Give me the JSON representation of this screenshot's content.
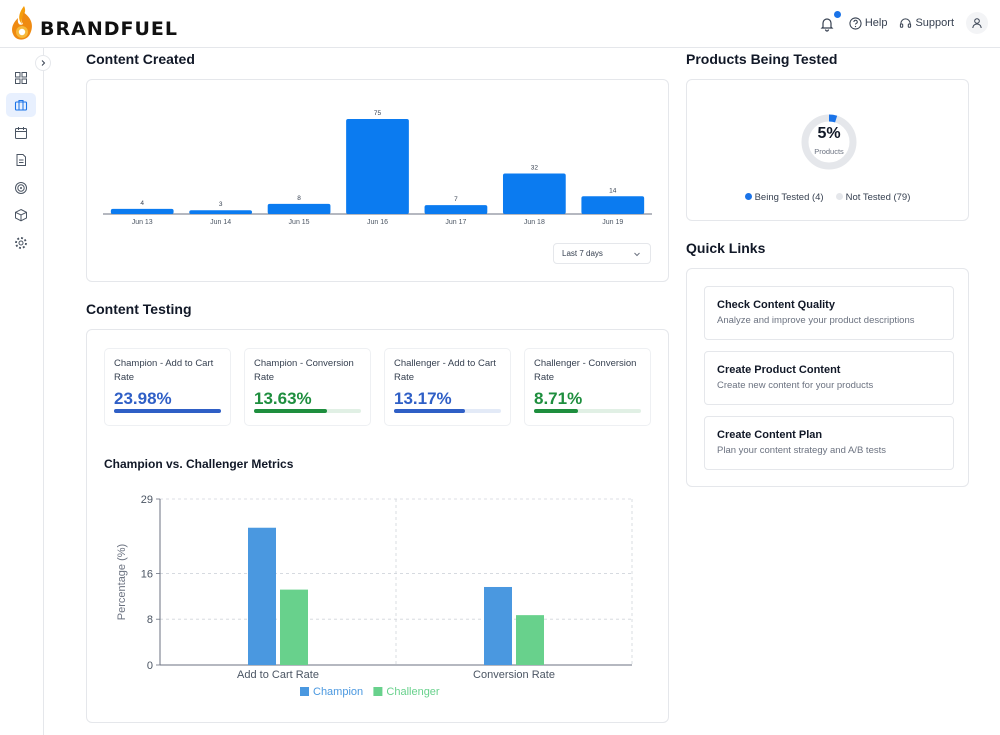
{
  "brand": {
    "name": "BRANDFUEL"
  },
  "header": {
    "help_label": "Help",
    "support_label": "Support",
    "notification_color": "#1a73e8"
  },
  "sidebar": {
    "items": [
      {
        "icon": "dashboard-icon",
        "active": false
      },
      {
        "icon": "briefcase-icon",
        "active": true
      },
      {
        "icon": "calendar-icon",
        "active": false
      },
      {
        "icon": "document-icon",
        "active": false
      },
      {
        "icon": "target-icon",
        "active": false
      },
      {
        "icon": "box-icon",
        "active": false
      },
      {
        "icon": "settings-icon",
        "active": false
      }
    ]
  },
  "content_created": {
    "title": "Content Created",
    "range_select": "Last 7 days"
  },
  "content_testing": {
    "title": "Content Testing",
    "metrics": [
      {
        "label": "Champion - Add to Cart Rate",
        "value": "23.98%",
        "color": "#2f5fc6",
        "progress": 1.0
      },
      {
        "label": "Champion - Conversion Rate",
        "value": "13.63%",
        "color": "#1e8e3e",
        "progress": 0.68
      },
      {
        "label": "Challenger - Add to Cart Rate",
        "value": "13.17%",
        "color": "#2f5fc6",
        "progress": 0.66
      },
      {
        "label": "Challenger - Conversion Rate",
        "value": "8.71%",
        "color": "#1e8e3e",
        "progress": 0.41
      }
    ],
    "comparison_title": "Champion vs. Challenger Metrics"
  },
  "products_tested": {
    "title": "Products Being Tested",
    "percent_label": "5%",
    "center_caption": "Products",
    "percent_value": 0.048,
    "legend_tested": "Being Tested (4)",
    "legend_not_tested": "Not Tested (79)",
    "tested_color": "#1a73e8",
    "not_tested_color": "#e5e7eb"
  },
  "quick_links": {
    "title": "Quick Links",
    "items": [
      {
        "title": "Check Content Quality",
        "desc": "Analyze and improve your product descriptions"
      },
      {
        "title": "Create Product Content",
        "desc": "Create new content for your products"
      },
      {
        "title": "Create Content Plan",
        "desc": "Plan your content strategy and A/B tests"
      }
    ]
  },
  "chart_data": [
    {
      "type": "bar",
      "categories": [
        "Jun 13",
        "Jun 14",
        "Jun 15",
        "Jun 16",
        "Jun 17",
        "Jun 18",
        "Jun 19"
      ],
      "values": [
        4,
        3,
        8,
        75,
        7,
        32,
        14
      ],
      "title": "",
      "xlabel": "",
      "ylabel": "",
      "ylim": [
        0,
        75
      ],
      "grid": false,
      "color": "#0b7bf0"
    },
    {
      "type": "bar",
      "categories": [
        "Add to Cart Rate",
        "Conversion Rate"
      ],
      "series": [
        {
          "name": "Champion",
          "values": [
            23.98,
            13.63
          ],
          "color": "#4a98e0"
        },
        {
          "name": "Challenger",
          "values": [
            13.17,
            8.71
          ],
          "color": "#68d18c"
        }
      ],
      "ylabel": "Percentage (%)",
      "yticks": [
        0,
        8,
        16,
        29
      ],
      "ylim": [
        0,
        29
      ],
      "grid": true,
      "legend": "bottom"
    }
  ]
}
